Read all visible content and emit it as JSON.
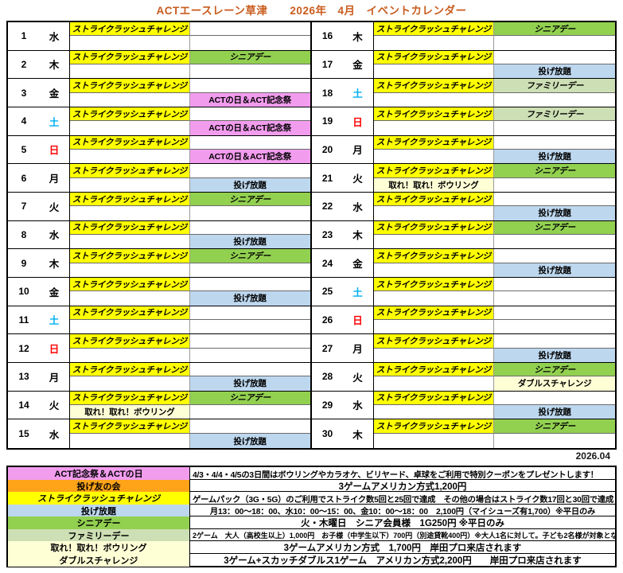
{
  "title": "ACTエースレーン草津　　2026年　4月　イベントカレンダー",
  "footer_date": "2026.04",
  "colors": {
    "title_text": "#C95B1D",
    "saturday_text": "#00B0F0",
    "sunday_text": "#FF0000",
    "weekday_text": "#000000"
  },
  "event_types": {
    "strike": {
      "label": "ストライクラッシュチャレンジ",
      "color": "#FFFF00",
      "italic": true
    },
    "senior": {
      "label": "シニアデー",
      "color": "#92D050",
      "italic": true
    },
    "family": {
      "label": "ファミリーデー",
      "color": "#CDDFB4",
      "italic": true
    },
    "act": {
      "label": "ACTの日＆ACT記念祭",
      "color": "#F29CEE",
      "italic": false
    },
    "nage": {
      "label": "投げ放題",
      "color": "#BDD7EE",
      "italic": false
    },
    "tore": {
      "label": "取れ！取れ！ボウリング",
      "color": "#FFFFD6",
      "italic": false
    },
    "doubles": {
      "label": "ダブルスチャレンジ",
      "color": "#FFFFD6",
      "italic": false
    }
  },
  "days": [
    {
      "num": "1",
      "wd": "水",
      "tl": "strike",
      "tr": null,
      "bl": null,
      "br": null
    },
    {
      "num": "2",
      "wd": "木",
      "tl": "strike",
      "tr": "senior",
      "bl": null,
      "br": null
    },
    {
      "num": "3",
      "wd": "金",
      "tl": "strike",
      "tr": null,
      "bl": null,
      "br": "act"
    },
    {
      "num": "4",
      "wd": "土",
      "tl": "strike",
      "tr": null,
      "bl": null,
      "br": "act"
    },
    {
      "num": "5",
      "wd": "日",
      "tl": "strike",
      "tr": null,
      "bl": null,
      "br": "act"
    },
    {
      "num": "6",
      "wd": "月",
      "tl": "strike",
      "tr": null,
      "bl": null,
      "br": "nage"
    },
    {
      "num": "7",
      "wd": "火",
      "tl": "strike",
      "tr": "senior",
      "bl": null,
      "br": null
    },
    {
      "num": "8",
      "wd": "水",
      "tl": "strike",
      "tr": null,
      "bl": null,
      "br": "nage"
    },
    {
      "num": "9",
      "wd": "木",
      "tl": "strike",
      "tr": "senior",
      "bl": null,
      "br": null
    },
    {
      "num": "10",
      "wd": "金",
      "tl": "strike",
      "tr": null,
      "bl": null,
      "br": "nage"
    },
    {
      "num": "11",
      "wd": "土",
      "tl": "strike",
      "tr": null,
      "bl": null,
      "br": null
    },
    {
      "num": "12",
      "wd": "日",
      "tl": "strike",
      "tr": null,
      "bl": null,
      "br": null
    },
    {
      "num": "13",
      "wd": "月",
      "tl": "strike",
      "tr": null,
      "bl": null,
      "br": "nage"
    },
    {
      "num": "14",
      "wd": "火",
      "tl": "strike",
      "tr": "senior",
      "bl": "tore",
      "br": null
    },
    {
      "num": "15",
      "wd": "水",
      "tl": "strike",
      "tr": null,
      "bl": null,
      "br": "nage"
    },
    {
      "num": "16",
      "wd": "木",
      "tl": "strike",
      "tr": "senior",
      "bl": null,
      "br": null
    },
    {
      "num": "17",
      "wd": "金",
      "tl": "strike",
      "tr": null,
      "bl": null,
      "br": "nage"
    },
    {
      "num": "18",
      "wd": "土",
      "tl": "strike",
      "tr": "family",
      "bl": null,
      "br": null
    },
    {
      "num": "19",
      "wd": "日",
      "tl": "strike",
      "tr": "family",
      "bl": null,
      "br": null
    },
    {
      "num": "20",
      "wd": "月",
      "tl": "strike",
      "tr": null,
      "bl": null,
      "br": "nage"
    },
    {
      "num": "21",
      "wd": "火",
      "tl": "strike",
      "tr": "senior",
      "bl": "tore",
      "br": null
    },
    {
      "num": "22",
      "wd": "水",
      "tl": "strike",
      "tr": null,
      "bl": null,
      "br": "nage"
    },
    {
      "num": "23",
      "wd": "木",
      "tl": "strike",
      "tr": "senior",
      "bl": null,
      "br": null
    },
    {
      "num": "24",
      "wd": "金",
      "tl": "strike",
      "tr": null,
      "bl": null,
      "br": "nage"
    },
    {
      "num": "25",
      "wd": "土",
      "tl": "strike",
      "tr": null,
      "bl": null,
      "br": null
    },
    {
      "num": "26",
      "wd": "日",
      "tl": "strike",
      "tr": null,
      "bl": null,
      "br": null
    },
    {
      "num": "27",
      "wd": "月",
      "tl": "strike",
      "tr": null,
      "bl": null,
      "br": "nage"
    },
    {
      "num": "28",
      "wd": "火",
      "tl": "strike",
      "tr": "senior",
      "bl": null,
      "br": "doubles"
    },
    {
      "num": "29",
      "wd": "水",
      "tl": "strike",
      "tr": null,
      "bl": null,
      "br": "nage"
    },
    {
      "num": "30",
      "wd": "木",
      "tl": "strike",
      "tr": "senior",
      "bl": null,
      "br": null
    }
  ],
  "legend": {
    "rows": [
      {
        "label": "ACT記念祭＆ACTの日",
        "color": "#F29CEE",
        "italic_label": false,
        "desc": "4/3・4/4・4/5の3日間はボウリングやカラオケ、ビリヤード、卓球をご利用で特別クーポンをプレゼントします！",
        "align": "left",
        "size": "m"
      },
      {
        "label": "投げ友の会",
        "color": "#FFA319",
        "italic_label": false,
        "desc": "3ゲームアメリカン方式1,200円",
        "align": "center",
        "size": "l"
      },
      {
        "label": "ストライクラッシュチャレンジ",
        "color": "#FFFF00",
        "italic_label": true,
        "desc": "ゲームパック（3G・5G）のご利用でストライク数5回と25回で達成　その他の場合はストライク数17回と30回で達成",
        "align": "left",
        "size": "m"
      },
      {
        "label": "投げ放題",
        "color": "#BDD7EE",
        "italic_label": false,
        "desc": "月13：00～18：00、水10：00～15：00、金10：00～18：00　2,100円（マイシューズ有1,700）※平日のみ",
        "align": "center",
        "size": "m"
      },
      {
        "label": "シニアデー",
        "color": "#92D050",
        "italic_label": false,
        "desc": "火・木曜日　シニア会員様　1G250円 ※平日のみ",
        "align": "center",
        "size": "l"
      },
      {
        "label": "ファミリーデー",
        "color": "#CDDFB4",
        "italic_label": false,
        "desc": "2ゲーム　大人（高校生以上）1,000円　お子様（中学生以下）700円（別途貸靴400円）※大人1名に対して。子ども2名様が対象となります",
        "align": "left",
        "size": "s"
      },
      {
        "label": "取れ！取れ！ボウリング",
        "color": "#FFFFD6",
        "italic_label": false,
        "desc": "3ゲームアメリカン方式　1,700円　岸田プロ来店されます",
        "align": "center",
        "size": "l"
      },
      {
        "label": "ダブルスチャレンジ",
        "color": "#FFFFD6",
        "italic_label": false,
        "desc": "3ゲーム+スカッチダブルス1ゲーム　アメリカン方式2,200円　　岸田プロ来店されます",
        "align": "center",
        "size": "l"
      }
    ]
  }
}
